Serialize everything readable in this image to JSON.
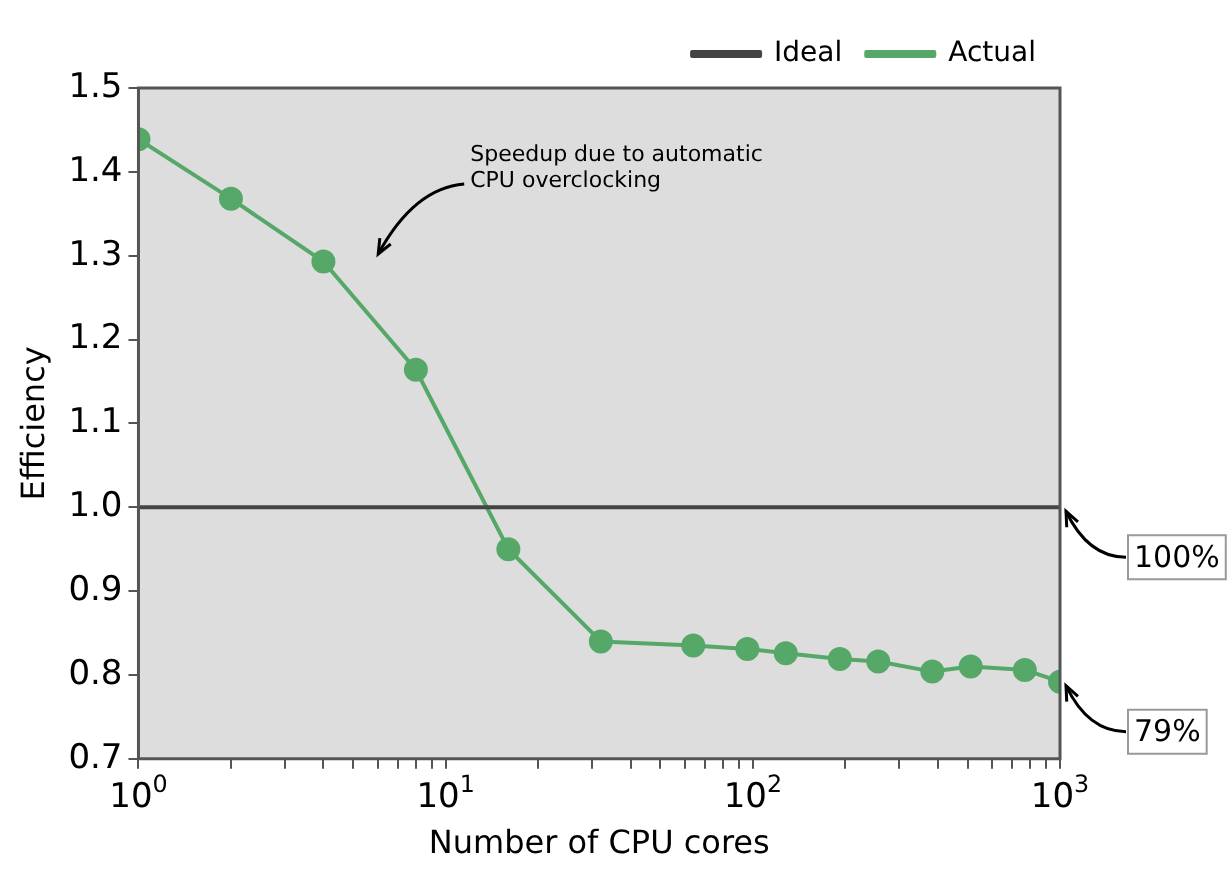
{
  "chart_data": {
    "type": "line",
    "xlabel": "Number of CPU cores",
    "ylabel": "Efficiency",
    "log": "x",
    "grid": false,
    "legend": "top right",
    "xlim": [
      1,
      1000
    ],
    "xticks": [
      {
        "value": 1,
        "label": "10$^{0}$"
      },
      {
        "value": 2,
        "label": null
      },
      {
        "value": 3,
        "label": null
      },
      {
        "value": 4,
        "label": null
      },
      {
        "value": 5,
        "label": null
      },
      {
        "value": 6,
        "label": null
      },
      {
        "value": 7,
        "label": null
      },
      {
        "value": 8,
        "label": null
      },
      {
        "value": 9,
        "label": null
      },
      {
        "value": 10,
        "label": "10$^{1}$"
      },
      {
        "value": 20,
        "label": null
      },
      {
        "value": 30,
        "label": null
      },
      {
        "value": 40,
        "label": null
      },
      {
        "value": 50,
        "label": null
      },
      {
        "value": 60,
        "label": null
      },
      {
        "value": 70,
        "label": null
      },
      {
        "value": 80,
        "label": null
      },
      {
        "value": 90,
        "label": null
      },
      {
        "value": 100,
        "label": "10$^{2}$"
      },
      {
        "value": 200,
        "label": null
      },
      {
        "value": 300,
        "label": null
      },
      {
        "value": 400,
        "label": null
      },
      {
        "value": 500,
        "label": null
      },
      {
        "value": 600,
        "label": null
      },
      {
        "value": 700,
        "label": null
      },
      {
        "value": 800,
        "label": null
      },
      {
        "value": 900,
        "label": null
      },
      {
        "value": 1000,
        "label": "10$^{3}$"
      }
    ],
    "ylim": [
      0.7,
      1.5
    ],
    "yticks": [
      {
        "value": 0.7,
        "label": "0.7"
      },
      {
        "value": 0.8,
        "label": "0.8"
      },
      {
        "value": 0.9,
        "label": "0.9"
      },
      {
        "value": 1,
        "label": "1.0"
      },
      {
        "value": 1.1,
        "label": "1.1"
      },
      {
        "value": 1.2,
        "label": "1.2"
      },
      {
        "value": 1.3,
        "label": "1.3"
      },
      {
        "value": 1.4,
        "label": "1.4"
      },
      {
        "value": 1.5,
        "label": "1.5"
      }
    ],
    "series": [
      {
        "name": "Ideal",
        "color": "#444444",
        "marker": "none",
        "x": [
          1,
          1000
        ],
        "values": [
          1,
          1
        ]
      },
      {
        "name": "Actual",
        "color": "#55a868",
        "marker": "circle",
        "x": [
          1,
          2,
          4,
          8,
          16,
          32,
          64,
          96,
          128,
          192,
          256,
          384,
          512,
          768,
          1000
        ],
        "values": [
          1.439,
          1.368,
          1.293,
          1.164,
          0.95,
          0.84,
          0.835,
          0.831,
          0.826,
          0.819,
          0.816,
          0.804,
          0.81,
          0.806,
          0.792
        ]
      }
    ],
    "annotations": [
      "Speedup due to automatic\nCPU overclocking",
      {
        "text": "100%",
        "x": 1000,
        "y": 1
      },
      {
        "text": "79%",
        "x": 1000,
        "y": 0.792
      }
    ]
  }
}
